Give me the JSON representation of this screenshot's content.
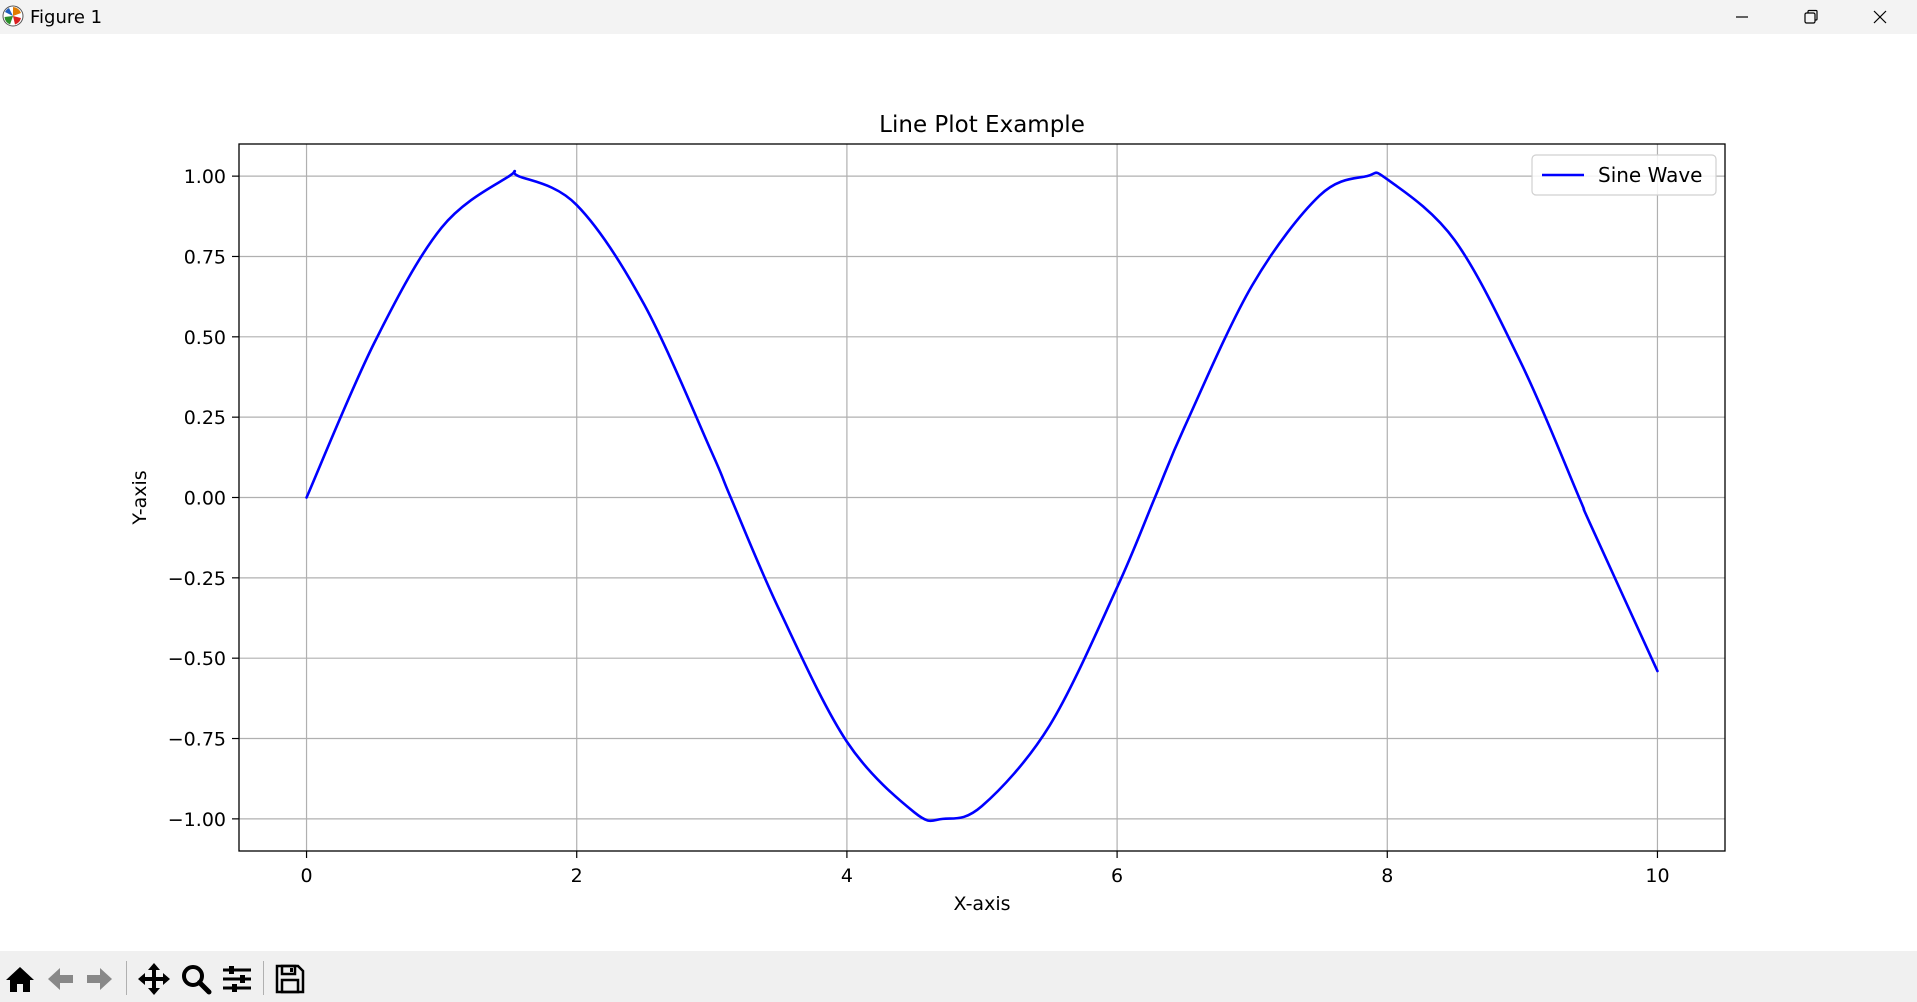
{
  "window": {
    "title": "Figure 1",
    "icon": "matplotlib-icon",
    "controls": [
      {
        "name": "minimize-icon"
      },
      {
        "name": "restore-icon"
      },
      {
        "name": "close-icon"
      }
    ]
  },
  "toolbar": {
    "buttons": [
      {
        "name": "home-button",
        "icon": "home-icon"
      },
      {
        "name": "back-button",
        "icon": "arrow-left-icon"
      },
      {
        "name": "forward-button",
        "icon": "arrow-right-icon"
      },
      {
        "name": "pan-button",
        "icon": "move-icon"
      },
      {
        "name": "zoom-button",
        "icon": "search-icon"
      },
      {
        "name": "configure-subplots-button",
        "icon": "sliders-icon"
      },
      {
        "name": "save-button",
        "icon": "save-icon"
      }
    ]
  },
  "chart_data": {
    "type": "line",
    "title": "Line Plot Example",
    "xlabel": "X-axis",
    "ylabel": "Y-axis",
    "xlim": [
      -0.5,
      10.5
    ],
    "ylim": [
      -1.1,
      1.1
    ],
    "xticks": [
      0,
      2,
      4,
      6,
      8,
      10
    ],
    "xtick_labels": [
      "0",
      "2",
      "4",
      "6",
      "8",
      "10"
    ],
    "yticks": [
      1.0,
      0.75,
      0.5,
      0.25,
      0.0,
      -0.25,
      -0.5,
      -0.75,
      -1.0
    ],
    "ytick_labels": [
      "1.00",
      "0.75",
      "0.50",
      "0.25",
      "0.00",
      "−0.25",
      "−0.50",
      "−0.75",
      "−1.00"
    ],
    "grid": true,
    "legend": {
      "placement": "top-right",
      "entries": [
        "Sine Wave"
      ]
    },
    "series": [
      {
        "name": "Sine Wave",
        "color": "#0000ff",
        "x": [
          0,
          0.5,
          1.0,
          1.5,
          1.57,
          2.0,
          2.5,
          3.0,
          3.14,
          3.5,
          4.0,
          4.5,
          4.71,
          5.0,
          5.5,
          6.0,
          6.28,
          6.5,
          7.0,
          7.5,
          7.85,
          8.0,
          8.5,
          9.0,
          9.42,
          9.5,
          10.0
        ],
        "y": [
          0.0,
          0.48,
          0.84,
          1.0,
          1.0,
          0.91,
          0.6,
          0.14,
          0.0,
          -0.35,
          -0.76,
          -0.98,
          -1.0,
          -0.96,
          -0.71,
          -0.28,
          0.0,
          0.22,
          0.66,
          0.94,
          1.0,
          0.99,
          0.8,
          0.41,
          0.0,
          -0.08,
          -0.54
        ]
      }
    ]
  }
}
